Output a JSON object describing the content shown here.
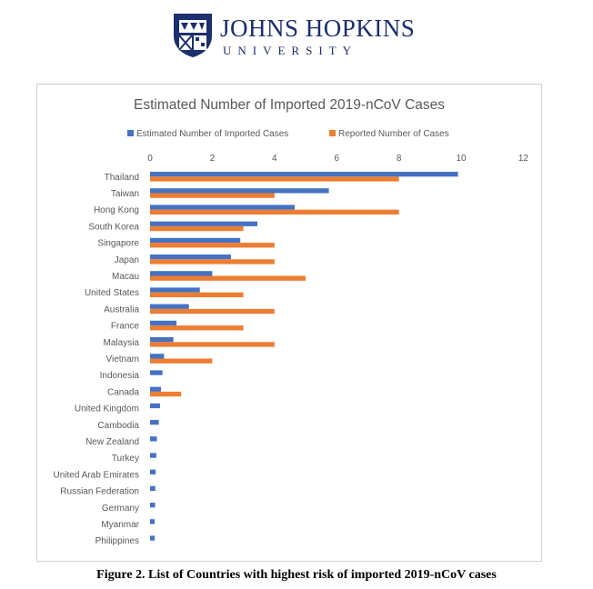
{
  "logo": {
    "name": "JOHNS HOPKINS",
    "subtitle": "UNIVERSITY"
  },
  "caption": "Figure 2. List of Countries with highest risk of imported 2019-nCoV cases",
  "chart_data": {
    "type": "bar",
    "orientation": "horizontal",
    "title": "Estimated Number of Imported 2019-nCoV Cases",
    "xlabel": "",
    "ylabel": "",
    "xlim": [
      0,
      12
    ],
    "xticks": [
      0,
      2,
      4,
      6,
      8,
      10,
      12
    ],
    "grid": false,
    "legend_position": "top",
    "categories": [
      "Thailand",
      "Taiwan",
      "Hong Kong",
      "South Korea",
      "Singapore",
      "Japan",
      "Macau",
      "United States",
      "Australia",
      "France",
      "Malaysia",
      "Vietnam",
      "Indonesia",
      "Canada",
      "United Kingdom",
      "Cambodia",
      "New Zealand",
      "Turkey",
      "United Arab Emirates",
      "Russian Federation",
      "Germany",
      "Myanmar",
      "Philippines"
    ],
    "series": [
      {
        "name": "Estimated Number of Imported Cases",
        "color": "#4472c4",
        "values": [
          9.9,
          5.75,
          4.65,
          3.45,
          2.9,
          2.6,
          2.0,
          1.6,
          1.25,
          0.85,
          0.75,
          0.45,
          0.4,
          0.35,
          0.32,
          0.28,
          0.22,
          0.2,
          0.18,
          0.17,
          0.16,
          0.15,
          0.15
        ]
      },
      {
        "name": "Reported Number of Cases",
        "color": "#ed7d31",
        "values": [
          8,
          4,
          8,
          3,
          4,
          4,
          5,
          3,
          4,
          3,
          4,
          2,
          0,
          1,
          0,
          0,
          0,
          0,
          0,
          0,
          0,
          0,
          0
        ]
      }
    ]
  }
}
